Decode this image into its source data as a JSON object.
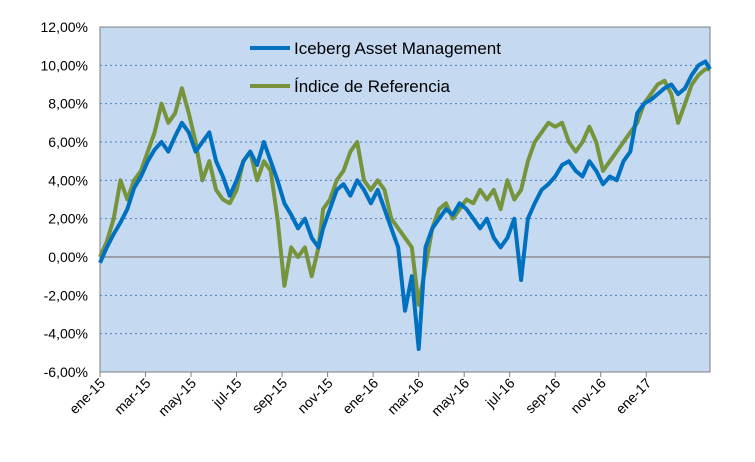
{
  "chart_data": {
    "type": "line",
    "title": "",
    "xlabel": "",
    "ylabel": "",
    "ylim": [
      -6,
      12
    ],
    "y_tick_step": 2,
    "y_tick_labels": [
      "-6,00%",
      "-4,00%",
      "-2,00%",
      "0,00%",
      "2,00%",
      "4,00%",
      "6,00%",
      "8,00%",
      "10,00%",
      "12,00%"
    ],
    "x_tick_labels": [
      "ene-15",
      "mar-15",
      "may-15",
      "jul-15",
      "sep-15",
      "nov-15",
      "ene-16",
      "mar-16",
      "may-16",
      "jul-16",
      "sep-16",
      "nov-16",
      "ene-17"
    ],
    "x_range": [
      0,
      26.8
    ],
    "legend_position": "top-center",
    "plot_background": "#c5d9f1",
    "gridlines": true,
    "series": [
      {
        "name": "Iceberg Asset Management",
        "color": "#0070c0",
        "x": [
          0,
          0.3,
          0.6,
          0.9,
          1.2,
          1.5,
          1.8,
          2.1,
          2.4,
          2.7,
          3.0,
          3.3,
          3.6,
          3.9,
          4.2,
          4.5,
          4.8,
          5.1,
          5.4,
          5.7,
          6.0,
          6.3,
          6.6,
          6.9,
          7.2,
          7.5,
          7.8,
          8.1,
          8.4,
          8.7,
          9.0,
          9.3,
          9.6,
          9.8,
          10.1,
          10.4,
          10.7,
          11.0,
          11.3,
          11.6,
          11.9,
          12.2,
          12.5,
          12.8,
          13.1,
          13.4,
          13.7,
          14.0,
          14.3,
          14.6,
          14.9,
          15.2,
          15.5,
          15.8,
          16.1,
          16.4,
          16.7,
          17.0,
          17.3,
          17.6,
          17.9,
          18.2,
          18.5,
          18.8,
          19.1,
          19.4,
          19.7,
          20.0,
          20.3,
          20.6,
          20.9,
          21.2,
          21.5,
          21.8,
          22.1,
          22.4,
          22.7,
          23.0,
          23.3,
          23.6,
          23.9,
          24.2,
          24.5,
          24.8,
          25.1,
          25.4,
          25.7,
          26.0,
          26.3,
          26.6,
          26.8
        ],
        "values": [
          -0.3,
          0.5,
          1.2,
          1.8,
          2.5,
          3.6,
          4.2,
          5.0,
          5.6,
          6.0,
          5.5,
          6.3,
          7.0,
          6.5,
          5.5,
          6.0,
          6.5,
          5.0,
          4.2,
          3.2,
          4.0,
          5.0,
          5.5,
          4.8,
          6.0,
          5.0,
          4.0,
          2.8,
          2.2,
          1.5,
          2.0,
          1.0,
          0.5,
          1.5,
          2.5,
          3.5,
          3.8,
          3.2,
          4.0,
          3.5,
          2.8,
          3.5,
          2.5,
          1.5,
          0.5,
          -2.8,
          -1.0,
          -4.8,
          0.5,
          1.5,
          2.0,
          2.5,
          2.2,
          2.8,
          2.5,
          2.0,
          1.5,
          2.0,
          1.0,
          0.5,
          1.0,
          2.0,
          -1.2,
          2.0,
          2.8,
          3.5,
          3.8,
          4.2,
          4.8,
          5.0,
          4.5,
          4.2,
          5.0,
          4.5,
          3.8,
          4.2,
          4.0,
          5.0,
          5.5,
          7.5,
          8.0,
          8.2,
          8.5,
          8.8,
          9.0,
          8.5,
          8.8,
          9.5,
          10.0,
          10.2,
          9.8
        ]
      },
      {
        "name": "Índice de Referencia",
        "color": "#77933c",
        "x": [
          0,
          0.3,
          0.6,
          0.9,
          1.2,
          1.5,
          1.8,
          2.1,
          2.4,
          2.7,
          3.0,
          3.3,
          3.6,
          3.9,
          4.2,
          4.5,
          4.8,
          5.1,
          5.4,
          5.7,
          6.0,
          6.3,
          6.6,
          6.9,
          7.2,
          7.5,
          7.8,
          8.1,
          8.4,
          8.7,
          9.0,
          9.3,
          9.6,
          9.8,
          10.1,
          10.4,
          10.7,
          11.0,
          11.3,
          11.6,
          11.9,
          12.2,
          12.5,
          12.8,
          13.1,
          13.4,
          13.7,
          14.0,
          14.3,
          14.6,
          14.9,
          15.2,
          15.5,
          15.8,
          16.1,
          16.4,
          16.7,
          17.0,
          17.3,
          17.6,
          17.9,
          18.2,
          18.5,
          18.8,
          19.1,
          19.4,
          19.7,
          20.0,
          20.3,
          20.6,
          20.9,
          21.2,
          21.5,
          21.8,
          22.1,
          22.4,
          22.7,
          23.0,
          23.3,
          23.6,
          23.9,
          24.2,
          24.5,
          24.8,
          25.1,
          25.4,
          25.7,
          26.0,
          26.3,
          26.6,
          26.8
        ],
        "values": [
          0.0,
          0.8,
          2.0,
          4.0,
          3.0,
          4.0,
          4.5,
          5.5,
          6.5,
          8.0,
          7.0,
          7.5,
          8.8,
          7.5,
          6.0,
          4.0,
          5.0,
          3.5,
          3.0,
          2.8,
          3.5,
          5.0,
          5.5,
          4.0,
          5.0,
          4.5,
          2.0,
          -1.5,
          0.5,
          0.0,
          0.5,
          -1.0,
          0.5,
          2.5,
          3.0,
          4.0,
          4.5,
          5.5,
          6.0,
          4.0,
          3.5,
          4.0,
          3.5,
          2.0,
          1.5,
          1.0,
          0.5,
          -2.5,
          -0.5,
          1.5,
          2.5,
          2.8,
          2.0,
          2.5,
          3.0,
          2.8,
          3.5,
          3.0,
          3.5,
          2.5,
          4.0,
          3.0,
          3.5,
          5.0,
          6.0,
          6.5,
          7.0,
          6.8,
          7.0,
          6.0,
          5.5,
          6.0,
          6.8,
          6.0,
          4.5,
          5.0,
          5.5,
          6.0,
          6.5,
          7.0,
          8.0,
          8.5,
          9.0,
          9.2,
          8.5,
          7.0,
          8.0,
          9.0,
          9.5,
          9.8,
          9.8
        ]
      }
    ]
  }
}
